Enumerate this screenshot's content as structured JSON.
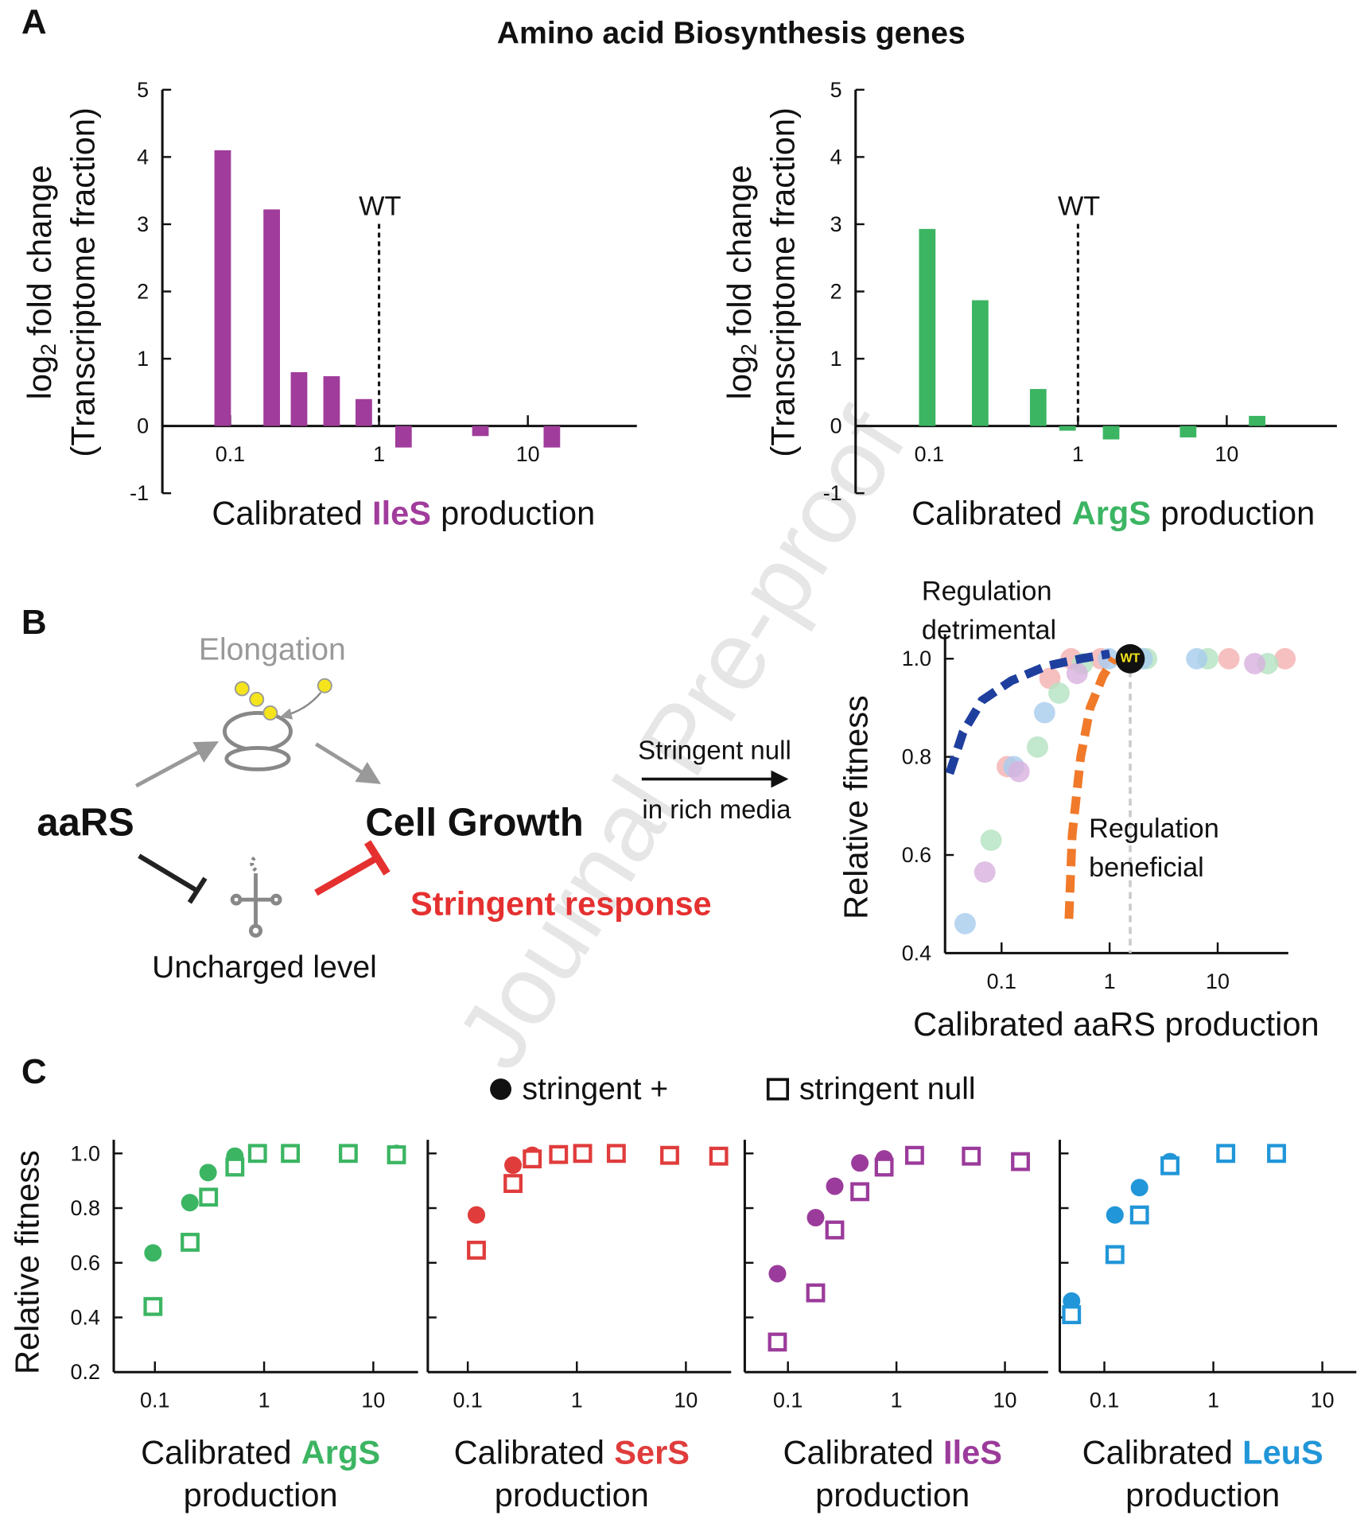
{
  "panel_labels": [
    "A",
    "B",
    "C"
  ],
  "panel_a_title": "Amino acid Biosynthesis genes",
  "watermark": "Journal Pre-proof",
  "panel_b_diagram": {
    "elongation": "Elongation",
    "aars": "aaRS",
    "cell_growth": "Cell Growth",
    "uncharged": "Uncharged level",
    "stringent": "Stringent response",
    "arrow_label": [
      "Stringent null",
      "in rich media"
    ]
  },
  "panel_c_legend": [
    {
      "label": "stringent +",
      "marker": "filled"
    },
    {
      "label": "stringent null",
      "marker": "open"
    }
  ],
  "chart_data": [
    {
      "type": "bar",
      "log_x": true,
      "color": "#a03c9b",
      "ylabel": {
        "main": "log",
        "subscript": "2",
        "rest": "fold change",
        "second_line": "(Transcriptome fraction)"
      },
      "xlabel": {
        "prefix": "Calibrated",
        "gene": "IleS",
        "suffix": "production"
      },
      "x": [
        0.089,
        0.19,
        0.29,
        0.48,
        0.79,
        1.46,
        4.8,
        14.5
      ],
      "values": [
        4.1,
        3.22,
        0.8,
        0.74,
        0.4,
        -0.32,
        -0.15,
        -0.32
      ],
      "xlim": [
        0.035,
        54
      ],
      "ylim": [
        -1,
        5
      ],
      "xticks": [
        0.1,
        1,
        10
      ],
      "yticks": [
        -1,
        0,
        1,
        2,
        3,
        4,
        5
      ],
      "reference": {
        "x": 1,
        "label": "WT"
      }
    },
    {
      "type": "bar",
      "log_x": true,
      "color": "#3cb563",
      "ylabel": {
        "main": "log",
        "subscript": "2",
        "rest": "fold change",
        "second_line": "(Transcriptome fraction)"
      },
      "xlabel": {
        "prefix": "Calibrated",
        "gene": "ArgS",
        "suffix": "production"
      },
      "x": [
        0.097,
        0.22,
        0.54,
        0.85,
        1.67,
        5.5,
        16
      ],
      "values": [
        2.93,
        1.87,
        0.55,
        -0.07,
        -0.2,
        -0.17,
        0.15
      ],
      "xlim": [
        0.032,
        55
      ],
      "ylim": [
        -1,
        5
      ],
      "xticks": [
        0.1,
        1,
        10
      ],
      "yticks": [
        -1,
        0,
        1,
        2,
        3,
        4,
        5
      ],
      "reference": {
        "x": 1,
        "label": "WT"
      }
    },
    {
      "type": "scatter",
      "log_x": true,
      "ylabel": "Relative fitness",
      "xlabel": "Calibrated aaRS production",
      "xlim": [
        0.03,
        45
      ],
      "ylim": [
        0.4,
        1.05
      ],
      "xticks": [
        0.1,
        1,
        10
      ],
      "yticks": [
        0.4,
        0.6,
        0.8,
        {
          "value": 1,
          "label": "1.0"
        }
      ],
      "series": [
        {
          "color": "#f5b0b0",
          "x": [
            0.113,
            0.28,
            0.44,
            0.83,
            1.7,
            12.7,
            42
          ],
          "values": [
            0.78,
            0.96,
            1.0,
            1.0,
            1.0,
            1.0,
            1.0
          ]
        },
        {
          "color": "#b3e2c0",
          "x": [
            0.08,
            0.215,
            0.34,
            0.56,
            2.2,
            8.1,
            29
          ],
          "values": [
            0.63,
            0.82,
            0.93,
            0.99,
            1.0,
            1.0,
            0.99
          ]
        },
        {
          "color": "#a8cced",
          "x": [
            0.046,
            0.13,
            0.25,
            0.98,
            2.0,
            6.4
          ],
          "values": [
            0.46,
            0.78,
            0.89,
            1.0,
            1.0,
            1.0
          ]
        },
        {
          "color": "#d8b2df",
          "x": [
            0.07,
            0.145,
            0.5,
            22
          ],
          "values": [
            0.565,
            0.77,
            0.97,
            0.99
          ]
        }
      ],
      "wt": {
        "x": 1.55,
        "y": 1.0,
        "label": "WT"
      },
      "curves": [
        {
          "label": [
            "Regulation",
            "detrimental"
          ],
          "color": "#1f3f9e",
          "x": [
            0.033,
            0.044,
            0.066,
            0.123,
            0.26,
            0.54,
            1.0
          ],
          "values": [
            0.766,
            0.85,
            0.915,
            0.955,
            0.985,
            1.0,
            1.01
          ]
        },
        {
          "label": [
            "Regulation",
            "beneficial"
          ],
          "color": "#f07a2a",
          "x": [
            0.42,
            0.45,
            0.54,
            0.66,
            0.87,
            1.1
          ],
          "values": [
            0.47,
            0.64,
            0.8,
            0.9,
            0.965,
            1.0
          ]
        }
      ]
    },
    {
      "type": "scatter",
      "log_x": true,
      "color": "#3cb563",
      "ylabel": "Relative fitness",
      "show_ytick_labels": true,
      "xlabel": {
        "prefix": "Calibrated",
        "gene": "ArgS",
        "suffix": "production"
      },
      "xlim": [
        0.042,
        25.7
      ],
      "ylim": [
        0.2,
        1.05
      ],
      "xticks": [
        0.1,
        1,
        10
      ],
      "yticks": [
        0.2,
        0.4,
        0.6,
        0.8,
        {
          "value": 1,
          "label": "1.0"
        }
      ],
      "series": [
        {
          "marker": "filled",
          "x": [
            0.096,
            0.209,
            0.307,
            0.54,
            0.87,
            1.74,
            5.9,
            16.3
          ],
          "values": [
            0.636,
            0.82,
            0.93,
            0.99,
            1.0,
            1.0,
            1.0,
            1.0
          ]
        },
        {
          "marker": "open",
          "x": [
            0.096,
            0.21,
            0.31,
            0.54,
            0.87,
            1.74,
            5.9,
            16.3
          ],
          "values": [
            0.44,
            0.675,
            0.84,
            0.95,
            1.0,
            1.0,
            1.0,
            0.995
          ]
        }
      ]
    },
    {
      "type": "scatter",
      "log_x": true,
      "color": "#e03c3c",
      "show_ytick_labels": false,
      "xlabel": {
        "prefix": "Calibrated",
        "gene": "SerS",
        "suffix": "production"
      },
      "xlim": [
        0.043,
        26
      ],
      "ylim": [
        0.2,
        1.05
      ],
      "xticks": [
        0.1,
        1,
        10
      ],
      "yticks": [
        0.2,
        0.4,
        0.6,
        0.8,
        {
          "value": 1,
          "label": "1.0"
        }
      ],
      "series": [
        {
          "marker": "filled",
          "x": [
            0.12,
            0.26,
            0.39,
            0.68,
            1.13,
            2.3,
            7.1,
            20
          ],
          "values": [
            0.775,
            0.957,
            0.993,
            0.996,
            1.0,
            1.0,
            0.993,
            0.99
          ]
        },
        {
          "marker": "open",
          "x": [
            0.12,
            0.26,
            0.39,
            0.68,
            1.13,
            2.3,
            7.1,
            20
          ],
          "values": [
            0.646,
            0.89,
            0.98,
            0.996,
            1.0,
            1.0,
            0.993,
            0.99
          ]
        }
      ]
    },
    {
      "type": "scatter",
      "log_x": true,
      "color": "#9b3b9b",
      "show_ytick_labels": false,
      "xlabel": {
        "prefix": "Calibrated",
        "gene": "IleS",
        "suffix": "production"
      },
      "xlim": [
        0.04,
        25
      ],
      "ylim": [
        0.2,
        1.05
      ],
      "xticks": [
        0.1,
        1,
        10
      ],
      "yticks": [
        0.2,
        0.4,
        0.6,
        0.8,
        {
          "value": 1,
          "label": "1.0"
        }
      ],
      "series": [
        {
          "marker": "filled",
          "x": [
            0.08,
            0.18,
            0.27,
            0.46,
            0.77,
            1.47,
            4.9,
            13.9
          ],
          "values": [
            0.56,
            0.765,
            0.88,
            0.965,
            0.98,
            0.993,
            0.99,
            0.97
          ]
        },
        {
          "marker": "open",
          "x": [
            0.08,
            0.18,
            0.27,
            0.46,
            0.77,
            1.47,
            4.9,
            13.9
          ],
          "values": [
            0.31,
            0.49,
            0.72,
            0.86,
            0.95,
            0.993,
            0.99,
            0.97
          ]
        }
      ]
    },
    {
      "type": "scatter",
      "log_x": true,
      "color": "#2196d8",
      "show_ytick_labels": false,
      "xlabel": {
        "prefix": "Calibrated",
        "gene": "LeuS",
        "suffix": "production"
      },
      "xlim": [
        0.039,
        20.5
      ],
      "ylim": [
        0.2,
        1.05
      ],
      "xticks": [
        0.1,
        1,
        10
      ],
      "yticks": [
        0.2,
        0.4,
        0.6,
        0.8,
        {
          "value": 1,
          "label": "1.0"
        }
      ],
      "series": [
        {
          "marker": "filled",
          "x": [
            0.05,
            0.125,
            0.21,
            0.4,
            1.3,
            3.8
          ],
          "values": [
            0.46,
            0.775,
            0.875,
            0.97,
            1.0,
            1.0
          ]
        },
        {
          "marker": "open",
          "x": [
            0.05,
            0.125,
            0.21,
            0.4,
            1.3,
            3.8
          ],
          "values": [
            0.41,
            0.63,
            0.775,
            0.955,
            1.0,
            1.0
          ]
        }
      ]
    }
  ]
}
